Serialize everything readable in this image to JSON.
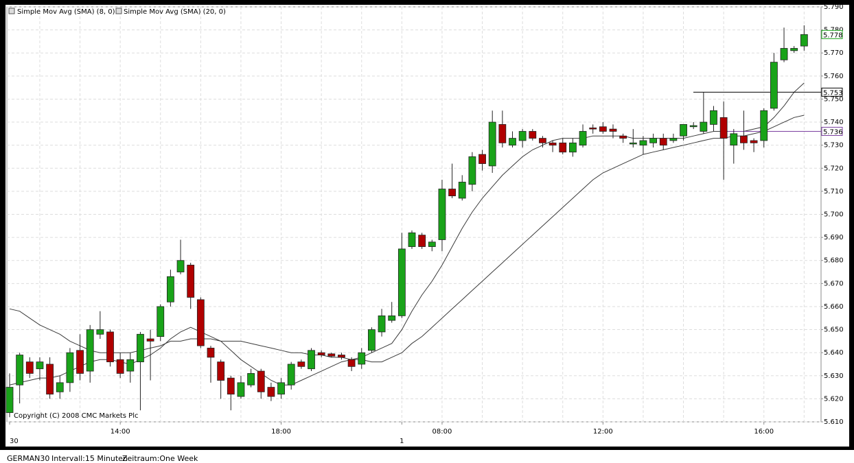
{
  "chart_data": {
    "type": "candlestick",
    "legend": [
      "Simple Mov Avg (SMA) (8, 0)",
      "Simple Mov Avg (SMA) (20, 0)"
    ],
    "copyright": "Copyright (C) 2008 CMC Markets Plc",
    "footer": [
      "GERMAN30",
      "Intervall:15 Minuten",
      "Zeitraum:One Week"
    ],
    "up_color": "#19a319",
    "down_color": "#b00000",
    "grid": true,
    "ylim": [
      5.61,
      5.79
    ],
    "yticks": [
      {
        "value": 5.61,
        "label": "5.610"
      },
      {
        "value": 5.62,
        "label": "5.620"
      },
      {
        "value": 5.63,
        "label": "5.630"
      },
      {
        "value": 5.64,
        "label": "5.640"
      },
      {
        "value": 5.65,
        "label": "5.650"
      },
      {
        "value": 5.66,
        "label": "5.660"
      },
      {
        "value": 5.67,
        "label": "5.670"
      },
      {
        "value": 5.68,
        "label": "5.680"
      },
      {
        "value": 5.69,
        "label": "5.690"
      },
      {
        "value": 5.7,
        "label": "5.700"
      },
      {
        "value": 5.71,
        "label": "5.710"
      },
      {
        "value": 5.72,
        "label": "5.720"
      },
      {
        "value": 5.73,
        "label": "5.730"
      },
      {
        "value": 5.74,
        "label": "5.740"
      },
      {
        "value": 5.75,
        "label": "5.750"
      },
      {
        "value": 5.76,
        "label": "5.760"
      },
      {
        "value": 5.77,
        "label": "5.770"
      },
      {
        "value": 5.78,
        "label": "5.780"
      },
      {
        "value": 5.79,
        "label": "5.790"
      }
    ],
    "categories": [
      "30",
      null,
      null,
      null,
      null,
      null,
      null,
      null,
      null,
      null,
      null,
      "14:00",
      null,
      null,
      null,
      null,
      null,
      null,
      null,
      null,
      null,
      null,
      null,
      null,
      null,
      null,
      null,
      "18:00",
      null,
      null,
      null,
      null,
      null,
      null,
      null,
      null,
      null,
      null,
      null,
      "1",
      null,
      null,
      null,
      "08:00",
      null,
      null,
      null,
      null,
      null,
      null,
      null,
      null,
      null,
      null,
      null,
      null,
      null,
      null,
      null,
      "12:00",
      null,
      null,
      null,
      null,
      null,
      null,
      null,
      null,
      null,
      null,
      null,
      null,
      null,
      null,
      null,
      "16:00",
      null,
      null,
      null,
      null
    ],
    "open": [
      5.614,
      5.626,
      5.636,
      5.633,
      5.635,
      5.623,
      5.627,
      5.641,
      5.632,
      5.648,
      5.649,
      5.637,
      5.632,
      5.636,
      5.646,
      5.647,
      5.662,
      5.675,
      5.678,
      5.663,
      5.642,
      5.636,
      5.629,
      5.621,
      5.626,
      5.632,
      5.625,
      5.622,
      5.626,
      5.636,
      5.633,
      5.64,
      5.6395,
      5.639,
      5.637,
      5.635,
      5.641,
      5.649,
      5.654,
      5.656,
      5.686,
      5.691,
      5.686,
      5.689,
      5.711,
      5.707,
      5.713,
      5.726,
      5.721,
      5.739,
      5.73,
      5.732,
      5.736,
      5.733,
      5.731,
      5.731,
      5.727,
      5.73,
      5.7375,
      5.738,
      5.737,
      5.734,
      5.7305,
      5.73,
      5.731,
      5.733,
      5.732,
      5.734,
      5.738,
      5.736,
      5.739,
      5.742,
      5.73,
      5.734,
      5.732,
      5.732,
      5.746,
      5.767,
      5.771,
      5.773
    ],
    "high": [
      5.631,
      5.64,
      5.638,
      5.638,
      5.638,
      5.63,
      5.642,
      5.648,
      5.652,
      5.658,
      5.65,
      5.64,
      5.64,
      5.649,
      5.65,
      5.661,
      5.676,
      5.689,
      5.679,
      5.664,
      5.643,
      5.637,
      5.63,
      5.63,
      5.633,
      5.633,
      5.627,
      5.629,
      5.636,
      5.637,
      5.642,
      5.641,
      5.64,
      5.64,
      5.638,
      5.642,
      5.651,
      5.659,
      5.662,
      5.692,
      5.693,
      5.692,
      5.689,
      5.715,
      5.722,
      5.717,
      5.727,
      5.728,
      5.745,
      5.745,
      5.736,
      5.737,
      5.737,
      5.734,
      5.732,
      5.733,
      5.733,
      5.739,
      5.739,
      5.74,
      5.739,
      5.735,
      5.737,
      5.734,
      5.735,
      5.735,
      5.735,
      5.739,
      5.74,
      5.753,
      5.747,
      5.749,
      5.737,
      5.745,
      5.733,
      5.746,
      5.77,
      5.781,
      5.773,
      5.782
    ],
    "low": [
      5.612,
      5.618,
      5.629,
      5.628,
      5.62,
      5.62,
      5.623,
      5.628,
      5.627,
      5.646,
      5.634,
      5.629,
      5.627,
      5.615,
      5.628,
      5.645,
      5.66,
      5.674,
      5.659,
      5.642,
      5.627,
      5.62,
      5.615,
      5.62,
      5.625,
      5.62,
      5.619,
      5.62,
      5.624,
      5.633,
      5.632,
      5.638,
      5.638,
      5.637,
      5.632,
      5.633,
      5.64,
      5.647,
      5.653,
      5.655,
      5.685,
      5.685,
      5.684,
      5.684,
      5.707,
      5.706,
      5.71,
      5.719,
      5.718,
      5.729,
      5.729,
      5.729,
      5.732,
      5.729,
      5.727,
      5.726,
      5.725,
      5.729,
      5.735,
      5.735,
      5.733,
      5.731,
      5.729,
      5.726,
      5.729,
      5.728,
      5.731,
      5.732,
      5.737,
      5.735,
      5.736,
      5.715,
      5.722,
      5.728,
      5.727,
      5.729,
      5.745,
      5.766,
      5.77,
      5.771
    ],
    "close": [
      5.625,
      5.639,
      5.631,
      5.636,
      5.622,
      5.627,
      5.64,
      5.631,
      5.65,
      5.65,
      5.636,
      5.631,
      5.637,
      5.648,
      5.645,
      5.66,
      5.673,
      5.68,
      5.664,
      5.643,
      5.638,
      5.628,
      5.622,
      5.627,
      5.631,
      5.623,
      5.621,
      5.627,
      5.635,
      5.634,
      5.641,
      5.639,
      5.6385,
      5.638,
      5.634,
      5.64,
      5.65,
      5.656,
      5.656,
      5.685,
      5.692,
      5.686,
      5.688,
      5.711,
      5.708,
      5.714,
      5.725,
      5.722,
      5.74,
      5.731,
      5.733,
      5.736,
      5.733,
      5.731,
      5.73,
      5.727,
      5.731,
      5.736,
      5.737,
      5.736,
      5.736,
      5.733,
      5.731,
      5.732,
      5.733,
      5.73,
      5.733,
      5.739,
      5.7385,
      5.74,
      5.745,
      5.733,
      5.735,
      5.731,
      5.731,
      5.745,
      5.766,
      5.772,
      5.772,
      5.778
    ],
    "overlays": [
      {
        "name": "Simple Mov Avg (SMA) (8, 0)",
        "color": "#3a3a3a",
        "values": [
          5.626,
          5.627,
          5.628,
          5.629,
          5.629,
          5.63,
          5.632,
          5.634,
          5.636,
          5.637,
          5.637,
          5.636,
          5.635,
          5.637,
          5.639,
          5.642,
          5.646,
          5.649,
          5.651,
          5.649,
          5.647,
          5.645,
          5.641,
          5.637,
          5.634,
          5.631,
          5.628,
          5.626,
          5.626,
          5.628,
          5.63,
          5.632,
          5.634,
          5.636,
          5.637,
          5.638,
          5.64,
          5.642,
          5.644,
          5.65,
          5.658,
          5.665,
          5.671,
          5.678,
          5.686,
          5.694,
          5.701,
          5.707,
          5.712,
          5.717,
          5.721,
          5.725,
          5.728,
          5.73,
          5.732,
          5.733,
          5.733,
          5.733,
          5.734,
          5.734,
          5.734,
          5.734,
          5.733,
          5.733,
          5.733,
          5.733,
          5.733,
          5.733,
          5.734,
          5.735,
          5.736,
          5.736,
          5.736,
          5.736,
          5.737,
          5.738,
          5.742,
          5.747,
          5.753,
          5.757
        ]
      },
      {
        "name": "Simple Mov Avg (SMA) (20, 0)",
        "color": "#3a3a3a",
        "values": [
          5.659,
          5.658,
          5.655,
          5.652,
          5.65,
          5.648,
          5.645,
          5.643,
          5.641,
          5.64,
          5.64,
          5.64,
          5.64,
          5.641,
          5.642,
          5.643,
          5.645,
          5.645,
          5.646,
          5.646,
          5.646,
          5.645,
          5.645,
          5.645,
          5.644,
          5.643,
          5.642,
          5.641,
          5.64,
          5.64,
          5.639,
          5.639,
          5.638,
          5.638,
          5.637,
          5.637,
          5.636,
          5.636,
          5.638,
          5.64,
          5.644,
          5.647,
          5.651,
          5.655,
          5.659,
          5.663,
          5.667,
          5.671,
          5.675,
          5.679,
          5.683,
          5.687,
          5.691,
          5.695,
          5.699,
          5.703,
          5.707,
          5.711,
          5.715,
          5.718,
          5.72,
          5.722,
          5.724,
          5.726,
          5.727,
          5.728,
          5.729,
          5.73,
          5.731,
          5.732,
          5.733,
          5.733,
          5.734,
          5.734,
          5.735,
          5.736,
          5.738,
          5.74,
          5.742,
          5.743
        ]
      }
    ],
    "horizontal_lines": [
      {
        "value": 5.753,
        "color": "#000000"
      },
      {
        "value": 5.736,
        "color": "#7b3fa0"
      }
    ],
    "last_price": 5.778,
    "last_price_color": "#19a319"
  }
}
